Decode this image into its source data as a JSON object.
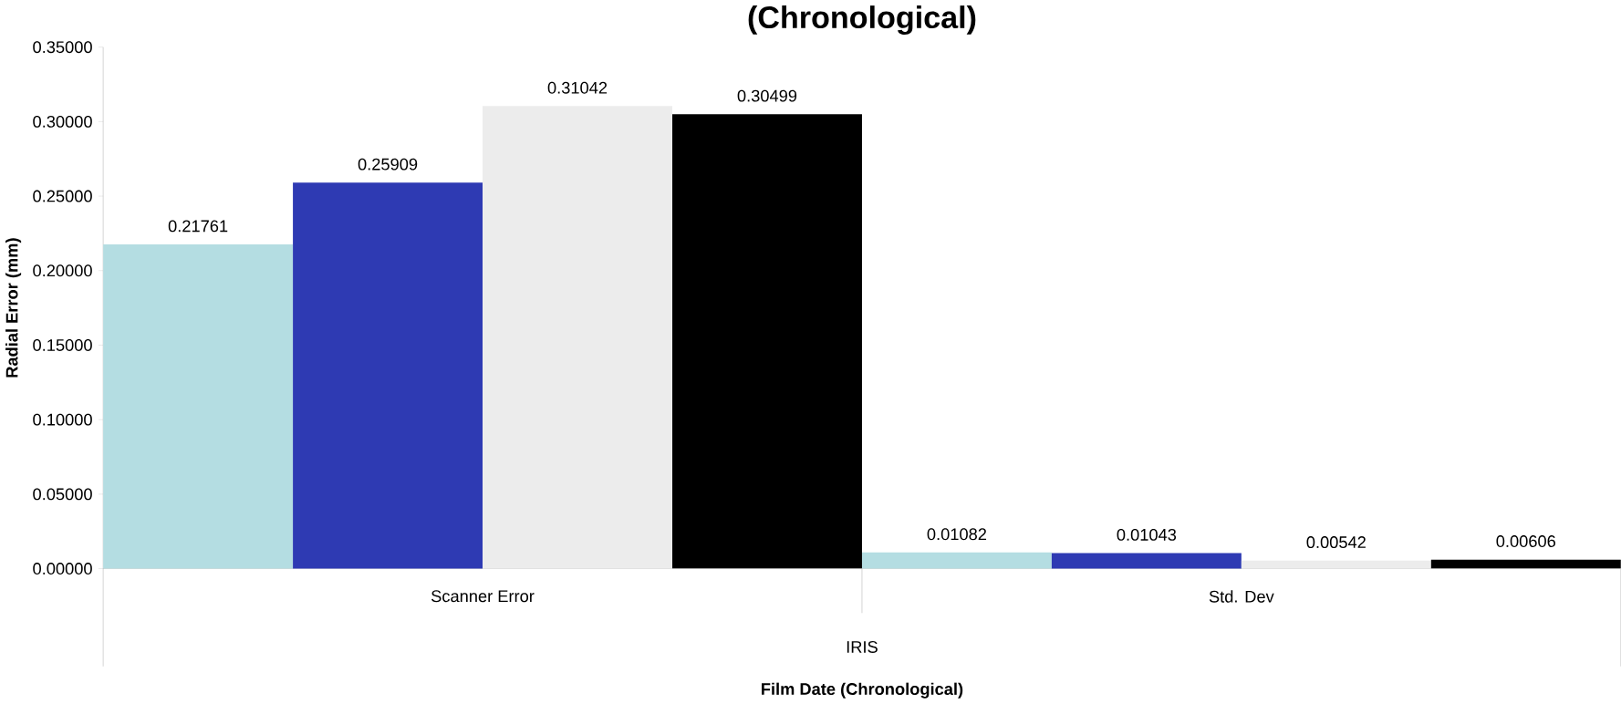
{
  "chart_data": {
    "type": "bar",
    "title": "(Chronological)",
    "xlabel": "Film Date (Chronological)",
    "ylabel": "Radial Error (mm)",
    "categories": [
      "Scanner Error",
      "Std. Dev"
    ],
    "series": [
      {
        "color": "#b4dde2",
        "values": [
          0.21761,
          0.01082
        ]
      },
      {
        "color": "#2e3ab3",
        "values": [
          0.25909,
          0.01043
        ]
      },
      {
        "color": "#ececec",
        "values": [
          0.31042,
          0.00542
        ]
      },
      {
        "color": "#000000",
        "values": [
          0.30499,
          0.00606
        ]
      }
    ],
    "ylim": [
      0,
      0.35
    ],
    "yticks": [
      {
        "value": 0,
        "label": "0.00000"
      },
      {
        "value": 0.05,
        "label": "0.05000"
      },
      {
        "value": 0.1,
        "label": "0.10000"
      },
      {
        "value": 0.15,
        "label": "0.15000"
      },
      {
        "value": 0.2,
        "label": "0.20000"
      },
      {
        "value": 0.25,
        "label": "0.25000"
      },
      {
        "value": 0.3,
        "label": "0.30000"
      },
      {
        "value": 0.35,
        "label": "0.35000"
      }
    ],
    "data_labels": true,
    "annotations": [
      "IRIS"
    ]
  }
}
